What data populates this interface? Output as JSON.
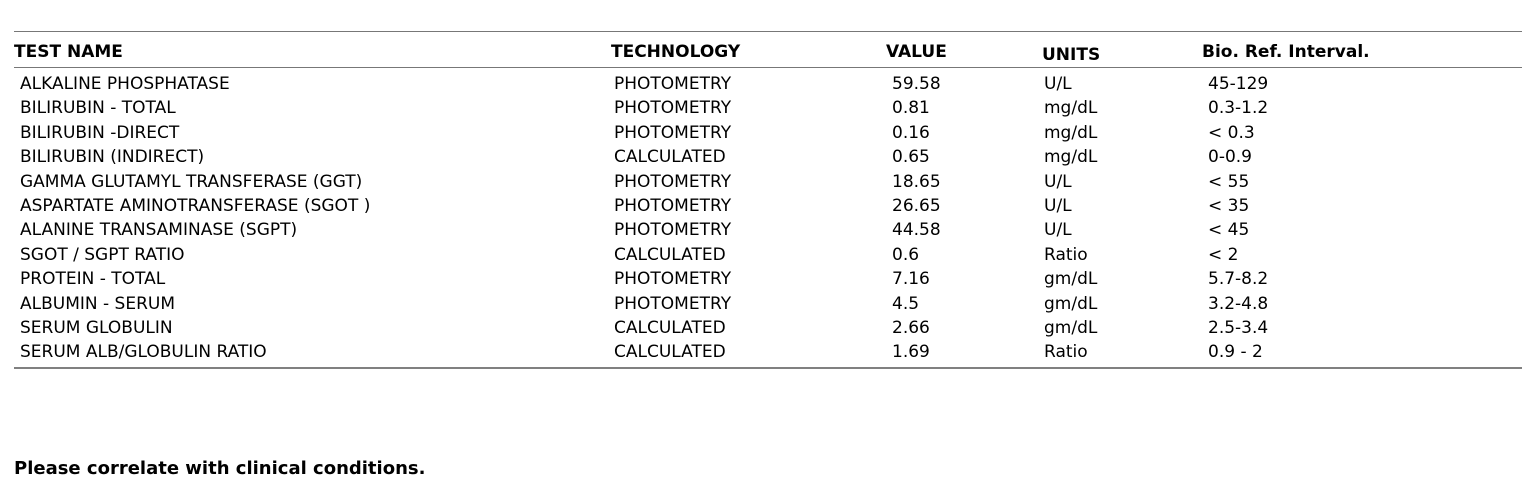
{
  "table": {
    "headers": {
      "test_name": "TEST NAME",
      "technology": "TECHNOLOGY",
      "value": "VALUE",
      "units": "UNITS",
      "ref_interval": "Bio. Ref. Interval."
    },
    "rows": [
      {
        "test_name": "ALKALINE PHOSPHATASE",
        "technology": "PHOTOMETRY",
        "value": "59.58",
        "units": "U/L",
        "ref_interval": "45-129"
      },
      {
        "test_name": "BILIRUBIN - TOTAL",
        "technology": "PHOTOMETRY",
        "value": "0.81",
        "units": "mg/dL",
        "ref_interval": "0.3-1.2"
      },
      {
        "test_name": "BILIRUBIN -DIRECT",
        "technology": "PHOTOMETRY",
        "value": "0.16",
        "units": "mg/dL",
        "ref_interval": "< 0.3"
      },
      {
        "test_name": "BILIRUBIN (INDIRECT)",
        "technology": "CALCULATED",
        "value": "0.65",
        "units": "mg/dL",
        "ref_interval": "0-0.9"
      },
      {
        "test_name": "GAMMA GLUTAMYL TRANSFERASE (GGT)",
        "technology": "PHOTOMETRY",
        "value": "18.65",
        "units": "U/L",
        "ref_interval": "< 55"
      },
      {
        "test_name": "ASPARTATE AMINOTRANSFERASE (SGOT )",
        "technology": "PHOTOMETRY",
        "value": "26.65",
        "units": "U/L",
        "ref_interval": "< 35"
      },
      {
        "test_name": "ALANINE TRANSAMINASE (SGPT)",
        "technology": "PHOTOMETRY",
        "value": "44.58",
        "units": "U/L",
        "ref_interval": "< 45"
      },
      {
        "test_name": "SGOT / SGPT RATIO",
        "technology": "CALCULATED",
        "value": "0.6",
        "units": "Ratio",
        "ref_interval": "< 2"
      },
      {
        "test_name": "PROTEIN - TOTAL",
        "technology": "PHOTOMETRY",
        "value": "7.16",
        "units": "gm/dL",
        "ref_interval": "5.7-8.2"
      },
      {
        "test_name": "ALBUMIN - SERUM",
        "technology": "PHOTOMETRY",
        "value": "4.5",
        "units": "gm/dL",
        "ref_interval": "3.2-4.8"
      },
      {
        "test_name": "SERUM GLOBULIN",
        "technology": "CALCULATED",
        "value": "2.66",
        "units": "gm/dL",
        "ref_interval": "2.5-3.4"
      },
      {
        "test_name": "SERUM ALB/GLOBULIN RATIO",
        "technology": "CALCULATED",
        "value": "1.69",
        "units": "Ratio",
        "ref_interval": "0.9 - 2"
      }
    ]
  },
  "footer_note": "Please correlate with clinical conditions."
}
